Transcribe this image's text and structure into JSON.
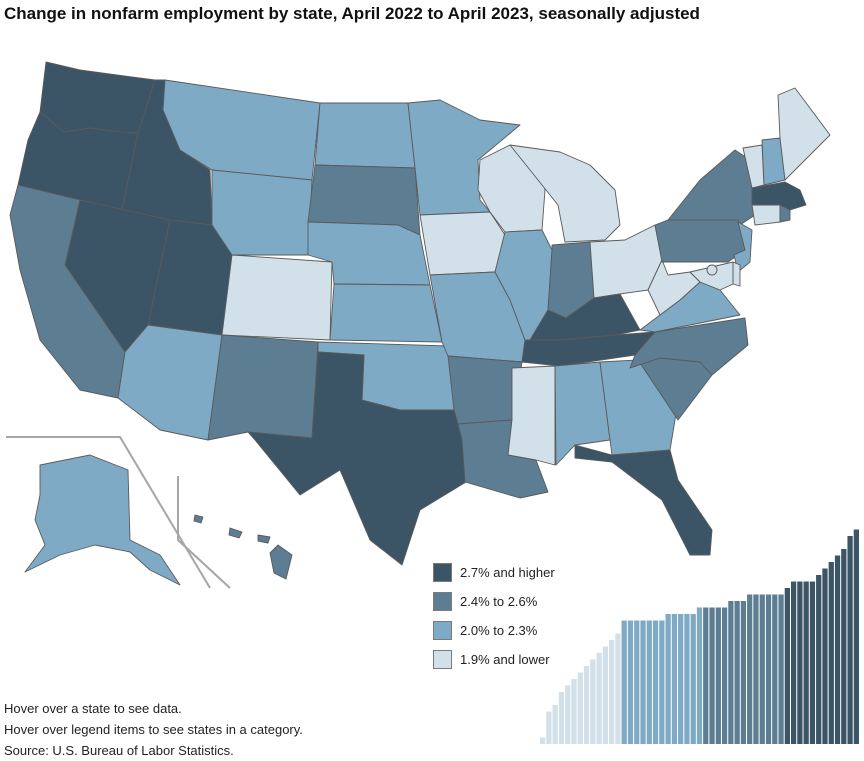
{
  "chart_data": {
    "type": "choropleth map",
    "title": "Change in nonfarm employment by state, April 2022 to April 2023, seasonally adjusted",
    "legend": [
      {
        "label": "2.7% and higher",
        "color": "#3b5566"
      },
      {
        "label": "2.4% to 2.6%",
        "color": "#5d7d92"
      },
      {
        "label": "2.0% to 2.3%",
        "color": "#7eaac6"
      },
      {
        "label": "1.9% and lower",
        "color": "#d2e0e9"
      }
    ],
    "states": [
      {
        "code": "WA",
        "category": 0
      },
      {
        "code": "OR",
        "category": 0
      },
      {
        "code": "ID",
        "category": 0
      },
      {
        "code": "NV",
        "category": 0
      },
      {
        "code": "UT",
        "category": 0
      },
      {
        "code": "TX",
        "category": 0
      },
      {
        "code": "TN",
        "category": 0
      },
      {
        "code": "KY",
        "category": 0
      },
      {
        "code": "FL",
        "category": 0
      },
      {
        "code": "MA",
        "category": 0
      },
      {
        "code": "CA",
        "category": 1
      },
      {
        "code": "NM",
        "category": 1
      },
      {
        "code": "SD",
        "category": 1
      },
      {
        "code": "AR",
        "category": 1
      },
      {
        "code": "LA",
        "category": 1
      },
      {
        "code": "IN",
        "category": 1
      },
      {
        "code": "NC",
        "category": 1
      },
      {
        "code": "SC",
        "category": 1
      },
      {
        "code": "PA",
        "category": 1
      },
      {
        "code": "NY",
        "category": 1
      },
      {
        "code": "HI",
        "category": 1
      },
      {
        "code": "RI",
        "category": 1
      },
      {
        "code": "MT",
        "category": 2
      },
      {
        "code": "WY",
        "category": 2
      },
      {
        "code": "ND",
        "category": 2
      },
      {
        "code": "MN",
        "category": 2
      },
      {
        "code": "NE",
        "category": 2
      },
      {
        "code": "KS",
        "category": 2
      },
      {
        "code": "OK",
        "category": 2
      },
      {
        "code": "MO",
        "category": 2
      },
      {
        "code": "IL",
        "category": 2
      },
      {
        "code": "AZ",
        "category": 2
      },
      {
        "code": "AL",
        "category": 2
      },
      {
        "code": "GA",
        "category": 2
      },
      {
        "code": "VA",
        "category": 2
      },
      {
        "code": "NJ",
        "category": 2
      },
      {
        "code": "NH",
        "category": 2
      },
      {
        "code": "AK",
        "category": 2
      },
      {
        "code": "CO",
        "category": 3
      },
      {
        "code": "IA",
        "category": 3
      },
      {
        "code": "WI",
        "category": 3
      },
      {
        "code": "MI",
        "category": 3
      },
      {
        "code": "OH",
        "category": 3
      },
      {
        "code": "WV",
        "category": 3
      },
      {
        "code": "MS",
        "category": 3
      },
      {
        "code": "ME",
        "category": 3
      },
      {
        "code": "VT",
        "category": 3
      },
      {
        "code": "CT",
        "category": 3
      },
      {
        "code": "MD",
        "category": 3
      },
      {
        "code": "DE",
        "category": 3
      },
      {
        "code": "DC",
        "category": 3
      }
    ],
    "histogram_ranks": [
      1,
      5,
      6,
      8,
      9,
      10,
      11,
      12,
      13,
      14,
      15,
      16,
      17,
      19,
      19,
      19,
      19,
      19,
      19,
      19,
      20,
      20,
      20,
      20,
      20,
      21,
      21,
      21,
      21,
      21,
      22,
      22,
      22,
      23,
      23,
      23,
      23,
      23,
      23,
      24,
      25,
      25,
      25,
      25,
      26,
      27,
      28,
      29,
      30,
      32,
      33
    ]
  },
  "notes": {
    "line1": "Hover over a state to see data.",
    "line2": "Hover over legend items to see states in a category.",
    "source": "Source: U.S. Bureau of Labor Statistics."
  }
}
